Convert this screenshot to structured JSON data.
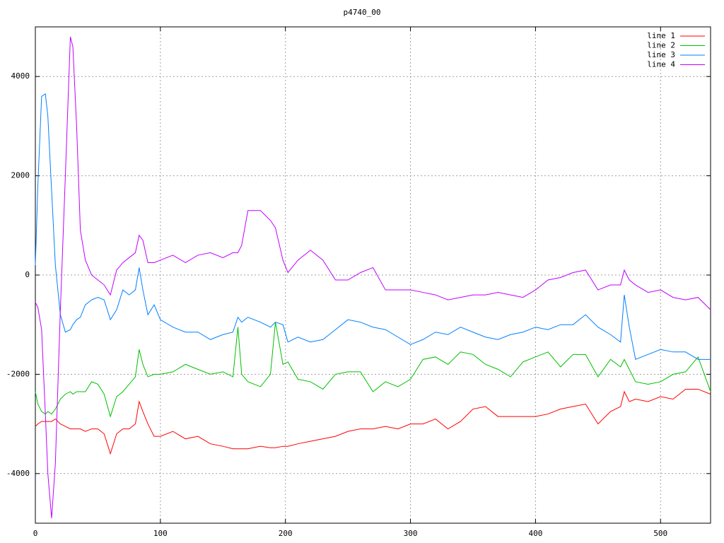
{
  "chart_data": {
    "type": "line",
    "title": "p4740_00",
    "x": [
      0,
      2,
      5,
      8,
      10,
      13,
      16,
      20,
      24,
      28,
      30,
      33,
      36,
      40,
      45,
      50,
      55,
      60,
      65,
      70,
      75,
      80,
      83,
      86,
      90,
      95,
      100,
      110,
      120,
      130,
      140,
      150,
      158,
      162,
      165,
      170,
      180,
      188,
      192,
      198,
      202,
      210,
      220,
      230,
      240,
      250,
      260,
      270,
      280,
      290,
      300,
      310,
      320,
      330,
      340,
      350,
      360,
      370,
      380,
      390,
      400,
      410,
      420,
      430,
      440,
      450,
      460,
      468,
      471,
      475,
      480,
      490,
      500,
      510,
      520,
      530,
      540
    ],
    "series": [
      {
        "name": "line 1",
        "color": "#ff0000",
        "values": [
          -3050,
          -3000,
          -2950,
          -2950,
          -2950,
          -2950,
          -2900,
          -3000,
          -3050,
          -3100,
          -3100,
          -3100,
          -3100,
          -3150,
          -3100,
          -3100,
          -3200,
          -3600,
          -3200,
          -3100,
          -3100,
          -3000,
          -2550,
          -2750,
          -3000,
          -3250,
          -3250,
          -3150,
          -3300,
          -3250,
          -3400,
          -3450,
          -3500,
          -3500,
          -3500,
          -3500,
          -3450,
          -3480,
          -3480,
          -3450,
          -3450,
          -3400,
          -3350,
          -3300,
          -3250,
          -3150,
          -3100,
          -3100,
          -3050,
          -3100,
          -3000,
          -3000,
          -2900,
          -3100,
          -2950,
          -2700,
          -2650,
          -2850,
          -2850,
          -2850,
          -2850,
          -2800,
          -2700,
          -2650,
          -2600,
          -3000,
          -2750,
          -2650,
          -2350,
          -2550,
          -2500,
          -2550,
          -2450,
          -2500,
          -2300,
          -2300,
          -2400
        ]
      },
      {
        "name": "line 2",
        "color": "#00c000",
        "values": [
          -2350,
          -2600,
          -2750,
          -2800,
          -2750,
          -2800,
          -2700,
          -2500,
          -2400,
          -2350,
          -2400,
          -2350,
          -2350,
          -2350,
          -2150,
          -2200,
          -2400,
          -2850,
          -2450,
          -2350,
          -2200,
          -2050,
          -1500,
          -1800,
          -2050,
          -2000,
          -2000,
          -1950,
          -1800,
          -1900,
          -2000,
          -1950,
          -2050,
          -1050,
          -2000,
          -2150,
          -2250,
          -2000,
          -950,
          -1800,
          -1750,
          -2100,
          -2150,
          -2300,
          -2000,
          -1950,
          -1950,
          -2350,
          -2150,
          -2250,
          -2100,
          -1700,
          -1650,
          -1800,
          -1550,
          -1600,
          -1800,
          -1900,
          -2050,
          -1750,
          -1650,
          -1550,
          -1850,
          -1600,
          -1600,
          -2050,
          -1700,
          -1850,
          -1700,
          -1900,
          -2150,
          -2200,
          -2150,
          -2000,
          -1950,
          -1650,
          -2350
        ]
      },
      {
        "name": "line 3",
        "color": "#0080ff",
        "values": [
          200,
          1800,
          3600,
          3650,
          3200,
          1700,
          200,
          -800,
          -1150,
          -1100,
          -1000,
          -900,
          -850,
          -600,
          -500,
          -450,
          -500,
          -900,
          -700,
          -300,
          -400,
          -300,
          150,
          -300,
          -800,
          -600,
          -900,
          -1050,
          -1150,
          -1150,
          -1300,
          -1200,
          -1150,
          -850,
          -950,
          -850,
          -950,
          -1050,
          -950,
          -1000,
          -1350,
          -1250,
          -1350,
          -1300,
          -1100,
          -900,
          -950,
          -1050,
          -1100,
          -1250,
          -1400,
          -1300,
          -1150,
          -1200,
          -1050,
          -1150,
          -1250,
          -1300,
          -1200,
          -1150,
          -1050,
          -1100,
          -1000,
          -1000,
          -800,
          -1050,
          -1200,
          -1350,
          -400,
          -1050,
          -1700,
          -1600,
          -1500,
          -1550,
          -1550,
          -1700,
          -1700
        ]
      },
      {
        "name": "line 4",
        "color": "#c000ff",
        "values": [
          -550,
          -650,
          -1100,
          -2800,
          -4000,
          -4900,
          -3800,
          -700,
          2000,
          4800,
          4600,
          3000,
          900,
          300,
          0,
          -100,
          -200,
          -400,
          100,
          250,
          350,
          450,
          800,
          700,
          250,
          250,
          300,
          400,
          250,
          400,
          450,
          350,
          450,
          450,
          600,
          1300,
          1300,
          1100,
          950,
          300,
          50,
          300,
          500,
          300,
          -100,
          -100,
          50,
          150,
          -300,
          -300,
          -300,
          -350,
          -400,
          -500,
          -450,
          -400,
          -400,
          -350,
          -400,
          -450,
          -300,
          -100,
          -50,
          50,
          100,
          -300,
          -200,
          -200,
          100,
          -100,
          -200,
          -350,
          -300,
          -450,
          -500,
          -450,
          -700
        ]
      }
    ],
    "xlim": [
      0,
      540
    ],
    "ylim": [
      -5000,
      5000
    ],
    "xticks": [
      0,
      100,
      200,
      300,
      400,
      500
    ],
    "yticks": [
      -4000,
      -2000,
      0,
      2000,
      4000
    ],
    "grid": true,
    "legend": "top-right"
  }
}
